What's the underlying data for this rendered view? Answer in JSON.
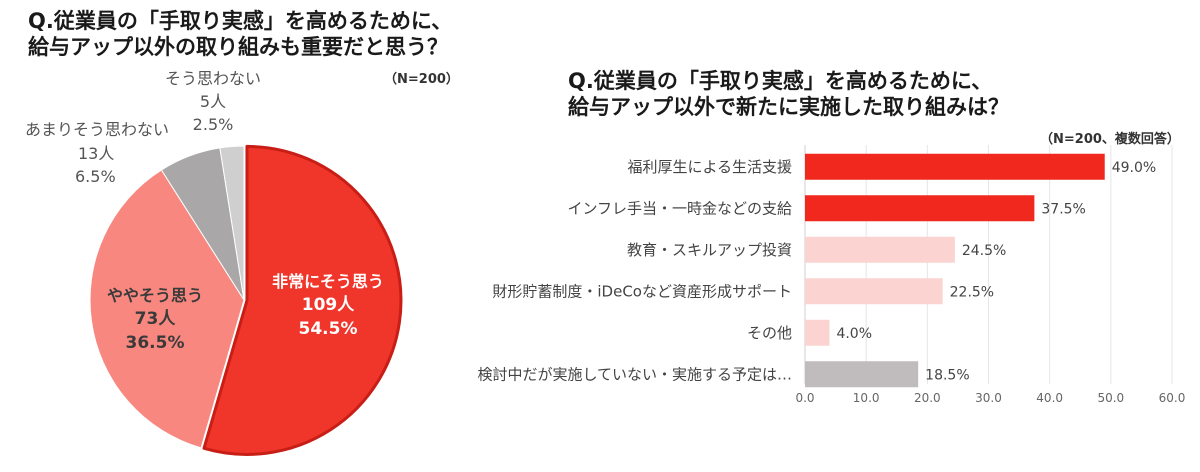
{
  "left_chart": {
    "title_lines": [
      "Q.従業員の「手取り実感」を高めるために、",
      "給与アップ以外の取り組みも重要だと思う？"
    ],
    "note": "（N=200）"
  },
  "right_chart": {
    "title_lines": [
      "Q.従業員の「手取り実感」を高めるために、",
      "給与アップ以外で新たに実施した取り組みは？"
    ],
    "note": "（N=200、複数回答）"
  },
  "chart_data": [
    {
      "type": "pie",
      "title": "Q.従業員の「手取り実感」を高めるために、給与アップ以外の取り組みも重要だと思う？",
      "note": "（N=200）",
      "slices": [
        {
          "label": "非常にそう思う",
          "count": "109人",
          "percent": "54.5%",
          "value": 54.5,
          "color": "#f0352a"
        },
        {
          "label": "ややそう思う",
          "count": "73人",
          "percent": "36.5%",
          "value": 36.5,
          "color": "#f7877f"
        },
        {
          "label": "あまりそう思わない",
          "count": "13人",
          "percent": "6.5%",
          "value": 6.5,
          "color": "#a9a7a8"
        },
        {
          "label": "そう思わない",
          "count": "5人",
          "percent": "2.5%",
          "value": 2.5,
          "color": "#d0cfcf"
        }
      ]
    },
    {
      "type": "bar",
      "orientation": "horizontal",
      "title": "Q.従業員の「手取り実感」を高めるために、給与アップ以外で新たに実施した取り組みは？",
      "note": "（N=200、複数回答）",
      "categories": [
        "福利厚生による生活支援",
        "インフレ手当・一時金などの支給",
        "教育・スキルアップ投資",
        "財形貯蓄制度・iDeCoなど資産形成サポート",
        "その他",
        "検討中だが実施していない・実施する予定は…"
      ],
      "values": [
        49.0,
        37.5,
        24.5,
        22.5,
        4.0,
        18.5
      ],
      "value_labels": [
        "49.0%",
        "37.5%",
        "24.5%",
        "22.5%",
        "4.0%",
        "18.5%"
      ],
      "colors": [
        "#f0281e",
        "#f0281e",
        "#fbd3d0",
        "#fbd3d0",
        "#fbd3d0",
        "#c0bcbe"
      ],
      "xlim": [
        0,
        60
      ],
      "xticks": [
        "0.0",
        "10.0",
        "20.0",
        "30.0",
        "40.0",
        "50.0",
        "60.0"
      ],
      "grid": true
    }
  ]
}
